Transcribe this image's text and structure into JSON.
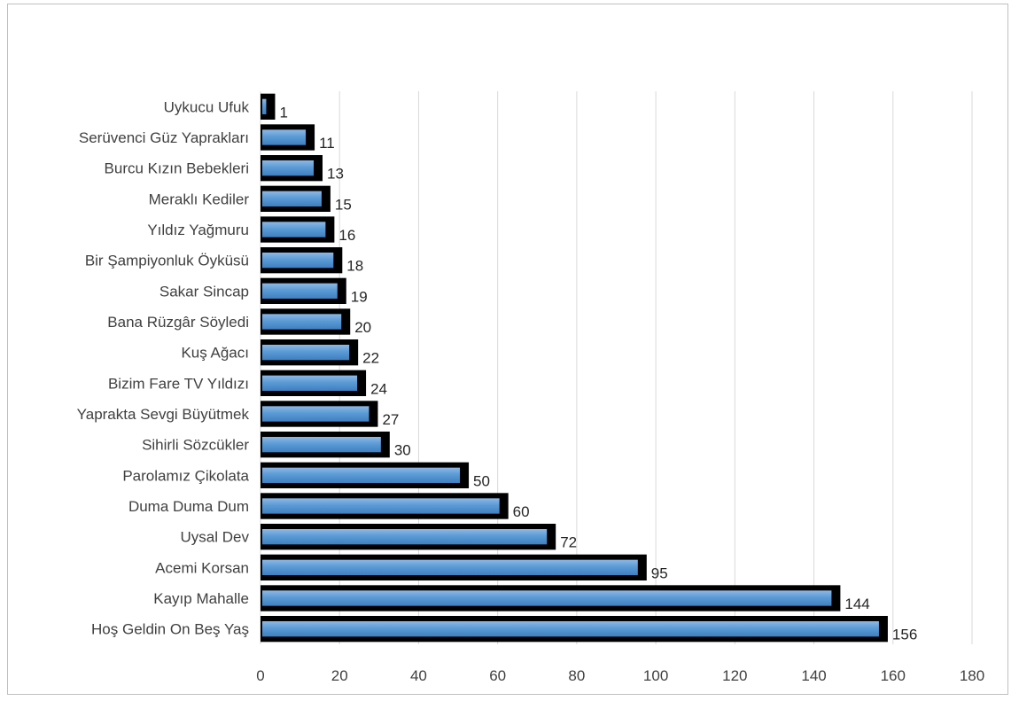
{
  "chart_data": {
    "type": "bar",
    "orientation": "horizontal",
    "categories": [
      "Uykucu Ufuk",
      "Serüvenci Güz Yaprakları",
      "Burcu Kızın Bebekleri",
      "Meraklı Kediler",
      "Yıldız Yağmuru",
      "Bir Şampiyonluk Öyküsü",
      "Sakar Sincap",
      "Bana Rüzgâr Söyledi",
      "Kuş Ağacı",
      "Bizim Fare TV Yıldızı",
      "Yaprakta Sevgi Büyütmek",
      "Sihirli Sözcükler",
      "Parolamız Çikolata",
      "Duma Duma Dum",
      "Uysal Dev",
      "Acemi Korsan",
      "Kayıp Mahalle",
      "Hoş Geldin On Beş Yaş"
    ],
    "values": [
      1,
      11,
      13,
      15,
      16,
      18,
      19,
      20,
      22,
      24,
      27,
      30,
      50,
      60,
      72,
      95,
      144,
      156
    ],
    "xlim": [
      0,
      180
    ],
    "xticks": [
      "0",
      "20",
      "40",
      "60",
      "80",
      "100",
      "120",
      "140",
      "160",
      "180"
    ],
    "grid": "vertical",
    "data_labels": true,
    "legend": "none",
    "colors": {
      "bar_fill": "#5b9bd5",
      "bar_shadow": "#000000",
      "grid": "#d9d9d9",
      "text": "#404040"
    }
  }
}
